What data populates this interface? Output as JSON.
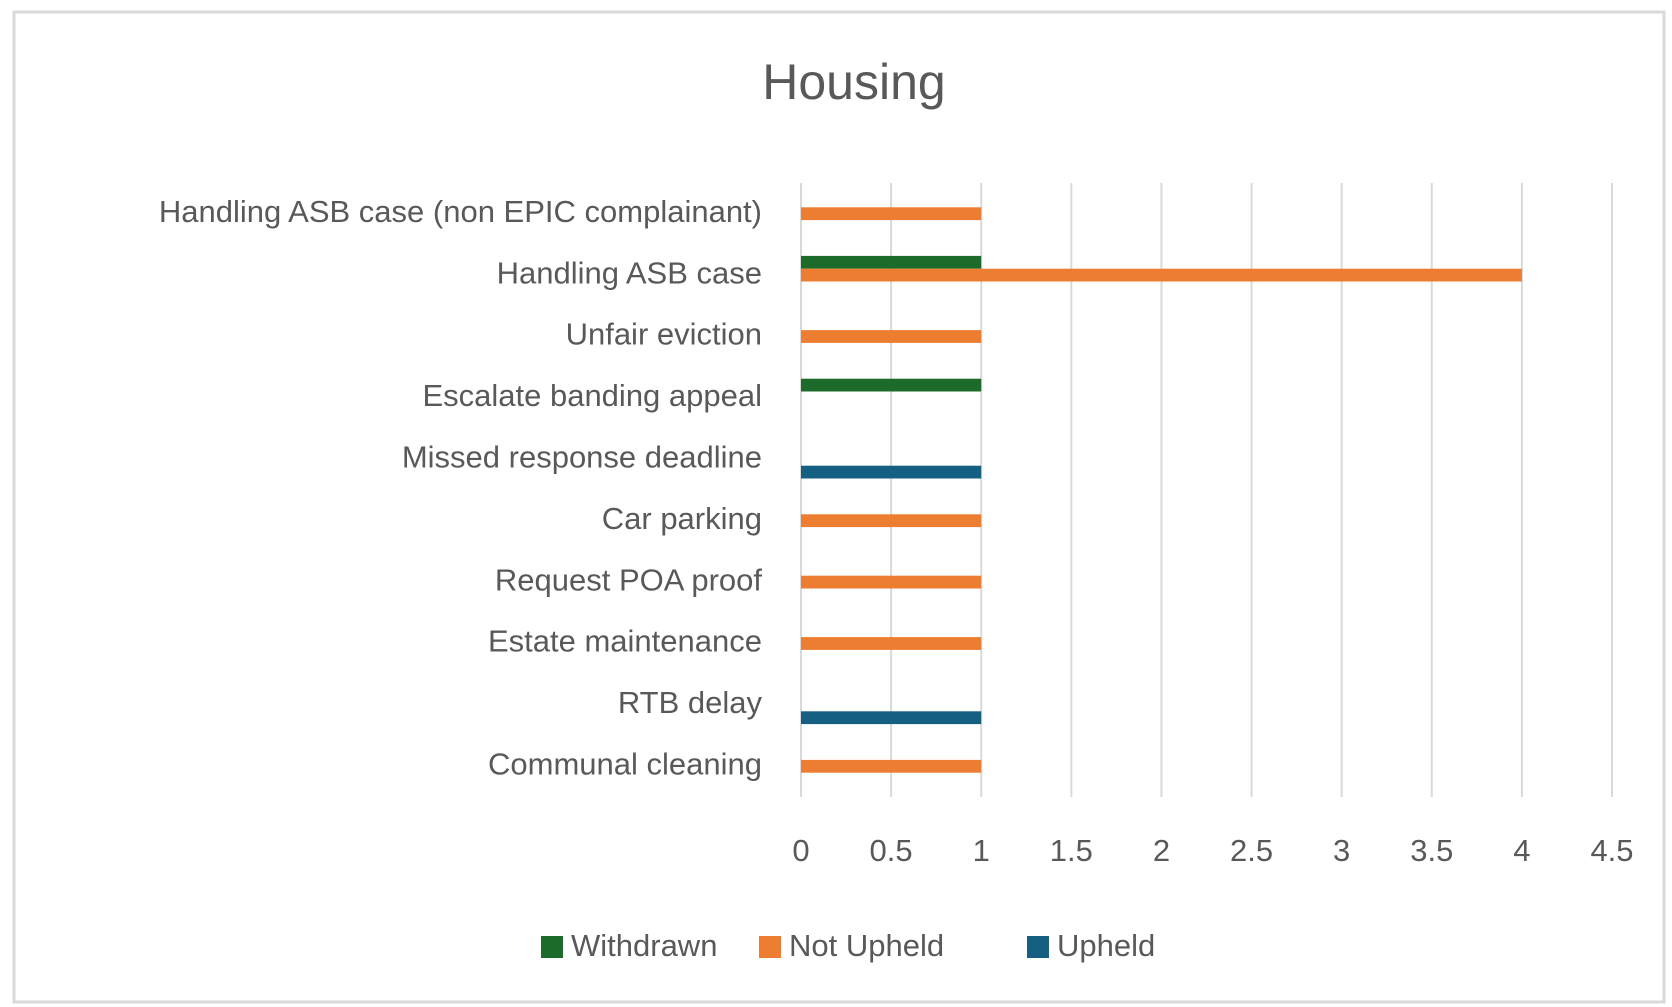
{
  "chart_data": {
    "type": "bar",
    "orientation": "horizontal",
    "title": "Housing",
    "categories": [
      "Handling ASB case (non EPIC complainant)",
      "Handling ASB case",
      "Unfair eviction",
      "Escalate banding appeal",
      "Missed response deadline",
      "Car parking",
      "Request POA proof",
      "Estate maintenance",
      "RTB delay",
      "Communal cleaning"
    ],
    "series": [
      {
        "name": "Withdrawn",
        "color": "#1d6b2b",
        "values": [
          null,
          1,
          null,
          1,
          null,
          null,
          null,
          null,
          null,
          null
        ]
      },
      {
        "name": "Not Upheld",
        "color": "#ed7d31",
        "values": [
          1,
          4,
          1,
          null,
          null,
          1,
          1,
          1,
          null,
          1
        ]
      },
      {
        "name": "Upheld",
        "color": "#156082",
        "values": [
          null,
          null,
          null,
          null,
          1,
          null,
          null,
          null,
          1,
          null
        ]
      }
    ],
    "xlim": [
      0,
      4.5
    ],
    "xticks": [
      0,
      0.5,
      1,
      1.5,
      2,
      2.5,
      3,
      3.5,
      4,
      4.5
    ],
    "grid": true,
    "legend": "bottom"
  }
}
